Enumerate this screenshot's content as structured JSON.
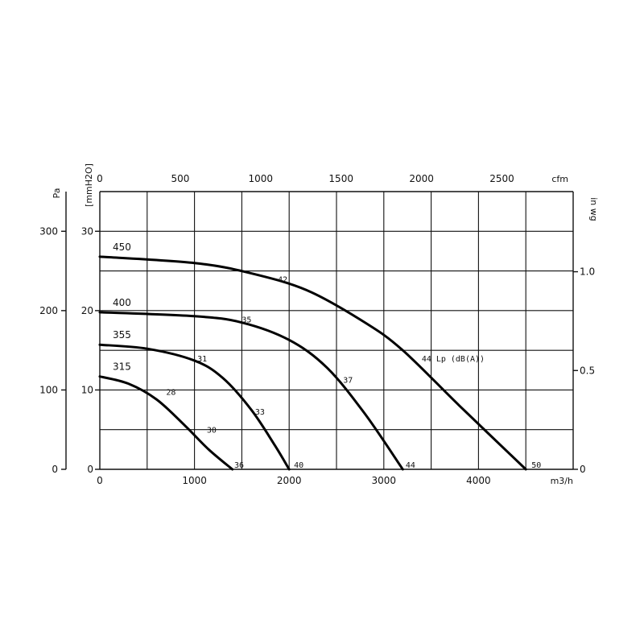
{
  "chart_data": {
    "type": "line",
    "title": "",
    "x_axis_bottom": {
      "unit": "m3/h",
      "range": [
        0,
        5000
      ],
      "ticks": [
        "0",
        "1000",
        "2000",
        "3000",
        "4000"
      ]
    },
    "x_axis_top": {
      "unit": "cfm",
      "range": [
        0,
        2950
      ],
      "ticks": [
        "0",
        "500",
        "1000",
        "1500",
        "2000",
        "2500"
      ]
    },
    "y_axis_left_pa": {
      "unit": "Pa",
      "range": [
        0,
        350
      ],
      "ticks": [
        "0",
        "100",
        "200",
        "300"
      ]
    },
    "y_axis_left_mmh2o": {
      "unit": "[mmH2O]",
      "range": [
        0,
        35
      ],
      "ticks": [
        "0",
        "10",
        "20",
        "30"
      ]
    },
    "y_axis_right": {
      "unit": "in wg",
      "range": [
        0,
        1.4
      ],
      "ticks": [
        "0",
        "0.5",
        "1.0"
      ]
    },
    "grid": true,
    "series": [
      {
        "name": "315",
        "x": [
          0,
          300,
          600,
          900,
          1150,
          1400
        ],
        "y": [
          117,
          108,
          88,
          55,
          25,
          0
        ],
        "point_labels": [
          {
            "text": "28",
            "x": 700,
            "y": 98
          },
          {
            "text": "30",
            "x": 1130,
            "y": 50
          },
          {
            "text": "36",
            "x": 1420,
            "y": 6
          }
        ]
      },
      {
        "name": "355",
        "x": [
          0,
          500,
          1000,
          1300,
          1600,
          1850,
          2000
        ],
        "y": [
          157,
          152,
          137,
          115,
          75,
          30,
          0
        ],
        "point_labels": [
          {
            "text": "31",
            "x": 1030,
            "y": 140
          },
          {
            "text": "33",
            "x": 1640,
            "y": 73
          },
          {
            "text": "40",
            "x": 2050,
            "y": 6
          }
        ]
      },
      {
        "name": "400",
        "x": [
          0,
          1000,
          1500,
          2000,
          2400,
          2800,
          3200
        ],
        "y": [
          198,
          193,
          185,
          163,
          128,
          70,
          0
        ],
        "point_labels": [
          {
            "text": "35",
            "x": 1500,
            "y": 189
          },
          {
            "text": "37",
            "x": 2570,
            "y": 113
          },
          {
            "text": "44",
            "x": 3230,
            "y": 6
          }
        ]
      },
      {
        "name": "450",
        "x": [
          0,
          1000,
          1600,
          2200,
          2800,
          3200,
          3800,
          4500
        ],
        "y": [
          268,
          260,
          247,
          225,
          185,
          150,
          80,
          0
        ],
        "point_labels": [
          {
            "text": "42",
            "x": 1880,
            "y": 240
          },
          {
            "text": "44",
            "x": 3400,
            "y": 140
          },
          {
            "text": "50",
            "x": 4560,
            "y": 6
          }
        ]
      }
    ],
    "annotation": "Lp  (dB(A))"
  }
}
